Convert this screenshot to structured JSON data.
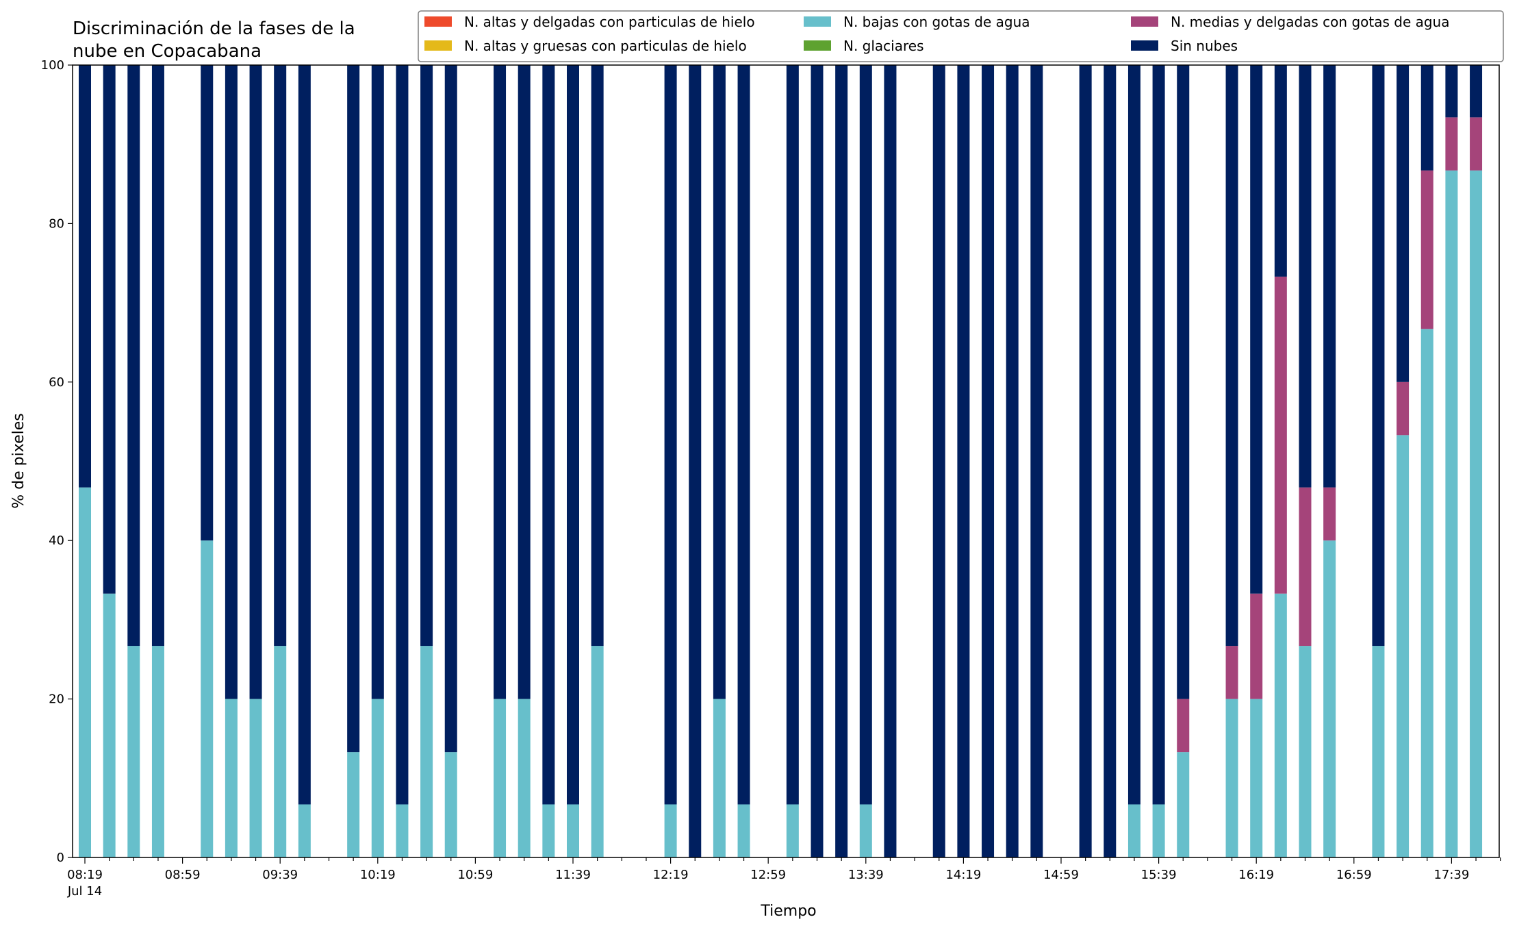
{
  "chart_data": {
    "type": "bar",
    "stacked": true,
    "title_lines": [
      "Discriminación de la fases de la",
      "nube en Copacabana"
    ],
    "xlabel": "Tiempo",
    "ylabel": "% de pixeles",
    "ylim": [
      0,
      100
    ],
    "yticks": [
      0,
      20,
      40,
      60,
      80,
      100
    ],
    "x_start": "08:19",
    "x_step_minutes": 10,
    "x_count": 59,
    "xtick_labels": [
      "08:19",
      "08:59",
      "09:39",
      "10:19",
      "10:59",
      "11:39",
      "12:19",
      "12:59",
      "13:39",
      "14:19",
      "14:59",
      "15:39",
      "16:19",
      "16:59",
      "17:39"
    ],
    "xtick_sublabel": "Jul 14",
    "grid": false,
    "legend_position": "top-right",
    "series": [
      {
        "name": "N. altas y delgadas con particulas de hielo",
        "color": "#ee4a2b"
      },
      {
        "name": "N. altas y gruesas con particulas de hielo",
        "color": "#e4b91a"
      },
      {
        "name": "N. bajas con gotas de agua",
        "color": "#67bfcb"
      },
      {
        "name": "N. glaciares",
        "color": "#5ea230"
      },
      {
        "name": "N. medias y delgadas con gotas de agua",
        "color": "#a5447a"
      },
      {
        "name": "Sin nubes",
        "color": "#001f5f"
      }
    ],
    "bars": [
      {
        "time": "08:19",
        "low": 46.7,
        "mid": 0
      },
      {
        "time": "08:29",
        "low": 33.3,
        "mid": 0
      },
      {
        "time": "08:39",
        "low": 26.7,
        "mid": 0
      },
      {
        "time": "08:49",
        "low": 26.7,
        "mid": 0
      },
      {
        "time": "09:09",
        "low": 40,
        "mid": 0
      },
      {
        "time": "09:19",
        "low": 20,
        "mid": 0
      },
      {
        "time": "09:29",
        "low": 20,
        "mid": 0
      },
      {
        "time": "09:39",
        "low": 26.7,
        "mid": 0
      },
      {
        "time": "09:49",
        "low": 6.7,
        "mid": 0
      },
      {
        "time": "10:09",
        "low": 13.3,
        "mid": 0
      },
      {
        "time": "10:19",
        "low": 20,
        "mid": 0
      },
      {
        "time": "10:29",
        "low": 6.7,
        "mid": 0
      },
      {
        "time": "10:39",
        "low": 26.7,
        "mid": 0
      },
      {
        "time": "10:49",
        "low": 13.3,
        "mid": 0
      },
      {
        "time": "11:09",
        "low": 20,
        "mid": 0
      },
      {
        "time": "11:19",
        "low": 20,
        "mid": 0
      },
      {
        "time": "11:29",
        "low": 6.7,
        "mid": 0
      },
      {
        "time": "11:39",
        "low": 6.7,
        "mid": 0
      },
      {
        "time": "11:49",
        "low": 26.7,
        "mid": 0
      },
      {
        "time": "12:19",
        "low": 6.7,
        "mid": 0
      },
      {
        "time": "12:29",
        "low": 0,
        "mid": 0
      },
      {
        "time": "12:39",
        "low": 20,
        "mid": 0
      },
      {
        "time": "12:49",
        "low": 6.7,
        "mid": 0
      },
      {
        "time": "13:09",
        "low": 6.7,
        "mid": 0
      },
      {
        "time": "13:19",
        "low": 0,
        "mid": 0
      },
      {
        "time": "13:29",
        "low": 0,
        "mid": 0
      },
      {
        "time": "13:39",
        "low": 6.7,
        "mid": 0
      },
      {
        "time": "13:49",
        "low": 0,
        "mid": 0
      },
      {
        "time": "14:09",
        "low": 0,
        "mid": 0
      },
      {
        "time": "14:19",
        "low": 0,
        "mid": 0
      },
      {
        "time": "14:29",
        "low": 0,
        "mid": 0
      },
      {
        "time": "14:39",
        "low": 0,
        "mid": 0
      },
      {
        "time": "14:49",
        "low": 0,
        "mid": 0
      },
      {
        "time": "15:09",
        "low": 0,
        "mid": 0
      },
      {
        "time": "15:19",
        "low": 0,
        "mid": 0
      },
      {
        "time": "15:29",
        "low": 6.7,
        "mid": 0
      },
      {
        "time": "15:39",
        "low": 6.7,
        "mid": 0
      },
      {
        "time": "15:49",
        "low": 13.3,
        "mid": 6.7
      },
      {
        "time": "16:09",
        "low": 20,
        "mid": 6.7
      },
      {
        "time": "16:19",
        "low": 20,
        "mid": 13.3
      },
      {
        "time": "16:29",
        "low": 33.3,
        "mid": 40
      },
      {
        "time": "16:39",
        "low": 26.7,
        "mid": 20
      },
      {
        "time": "16:49",
        "low": 40,
        "mid": 6.7
      },
      {
        "time": "17:09",
        "low": 26.7,
        "mid": 0
      },
      {
        "time": "17:19",
        "low": 53.3,
        "mid": 6.7
      },
      {
        "time": "17:29",
        "low": 66.7,
        "mid": 20
      },
      {
        "time": "17:39",
        "low": 86.7,
        "mid": 6.7
      },
      {
        "time": "17:49",
        "low": 86.7,
        "mid": 6.7
      }
    ]
  }
}
